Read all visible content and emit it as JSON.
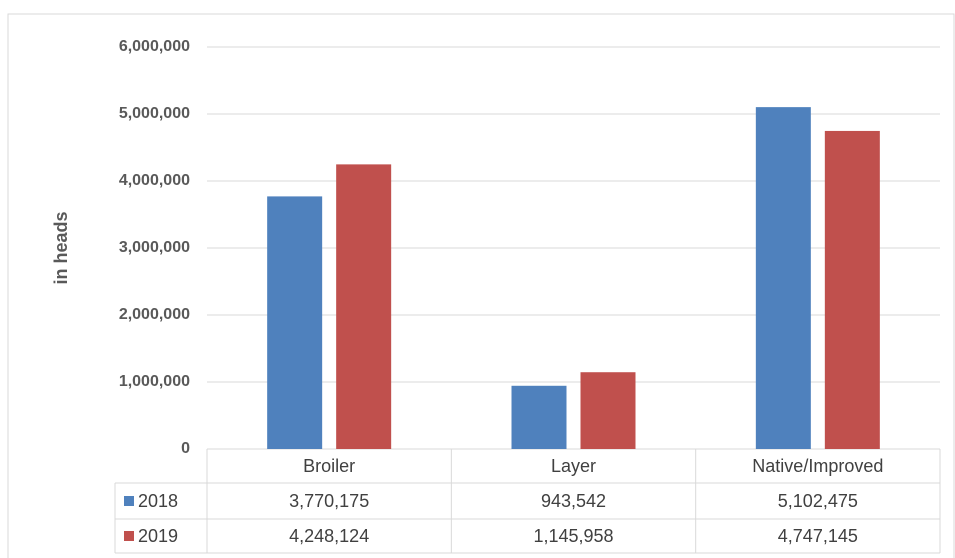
{
  "chart_data": {
    "type": "bar",
    "y_label": "in heads",
    "categories": [
      "Broiler",
      "Layer",
      "Native/Improved"
    ],
    "series": [
      {
        "name": "2018",
        "color": "#4f81bd",
        "values": [
          3770175,
          943542,
          5102475
        ],
        "value_labels": [
          "3,770,175",
          "943,542",
          "5,102,475"
        ]
      },
      {
        "name": "2019",
        "color": "#c0504d",
        "values": [
          4248124,
          1145958,
          4747145
        ],
        "value_labels": [
          "4,248,124",
          "1,145,958",
          "4,747,145"
        ]
      }
    ],
    "ylim": [
      0,
      6000000
    ],
    "yticks": [
      0,
      {
        "value": 1000000,
        "label": "1,000,000"
      },
      {
        "value": 2000000,
        "label": "2,000,000"
      },
      {
        "value": 3000000,
        "label": "3,000,000"
      },
      {
        "value": 4000000,
        "label": "4,000,000"
      },
      {
        "value": 5000000,
        "label": "5,000,000"
      },
      {
        "value": 6000000,
        "label": "6,000,000"
      }
    ],
    "grid": true
  }
}
